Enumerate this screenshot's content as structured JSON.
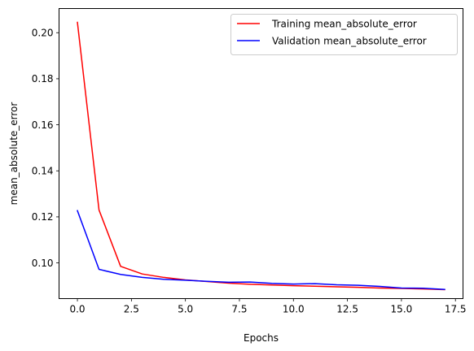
{
  "chart_data": {
    "type": "line",
    "title": "",
    "xlabel": "Epochs",
    "ylabel": "mean_absolute_error",
    "xlim": [
      -0.85,
      17.85
    ],
    "ylim": [
      0.0845,
      0.2105
    ],
    "xticks": [
      0.0,
      2.5,
      5.0,
      7.5,
      10.0,
      12.5,
      15.0,
      17.5
    ],
    "xtick_labels": [
      "0.0",
      "2.5",
      "5.0",
      "7.5",
      "10.0",
      "12.5",
      "15.0",
      "17.5"
    ],
    "yticks": [
      0.1,
      0.12,
      0.14,
      0.16,
      0.18,
      0.2
    ],
    "ytick_labels": [
      "0.10",
      "0.12",
      "0.14",
      "0.16",
      "0.18",
      "0.20"
    ],
    "grid": false,
    "legend_position": "top-right",
    "x": [
      0,
      1,
      2,
      3,
      4,
      5,
      6,
      7,
      8,
      9,
      10,
      11,
      12,
      13,
      14,
      15,
      16,
      17
    ],
    "series": [
      {
        "name": "Training mean_absolute_error",
        "color": "#ff0000",
        "values": [
          0.2045,
          0.123,
          0.0985,
          0.0952,
          0.0937,
          0.0926,
          0.0919,
          0.0912,
          0.0907,
          0.0904,
          0.0901,
          0.0899,
          0.0896,
          0.0894,
          0.0891,
          0.0889,
          0.0887,
          0.0884
        ]
      },
      {
        "name": "Validation mean_absolute_error",
        "color": "#0000ff",
        "values": [
          0.1227,
          0.0972,
          0.095,
          0.0937,
          0.0929,
          0.0925,
          0.092,
          0.0916,
          0.0917,
          0.0911,
          0.0908,
          0.091,
          0.0905,
          0.0903,
          0.0898,
          0.0891,
          0.089,
          0.0885
        ]
      }
    ]
  }
}
